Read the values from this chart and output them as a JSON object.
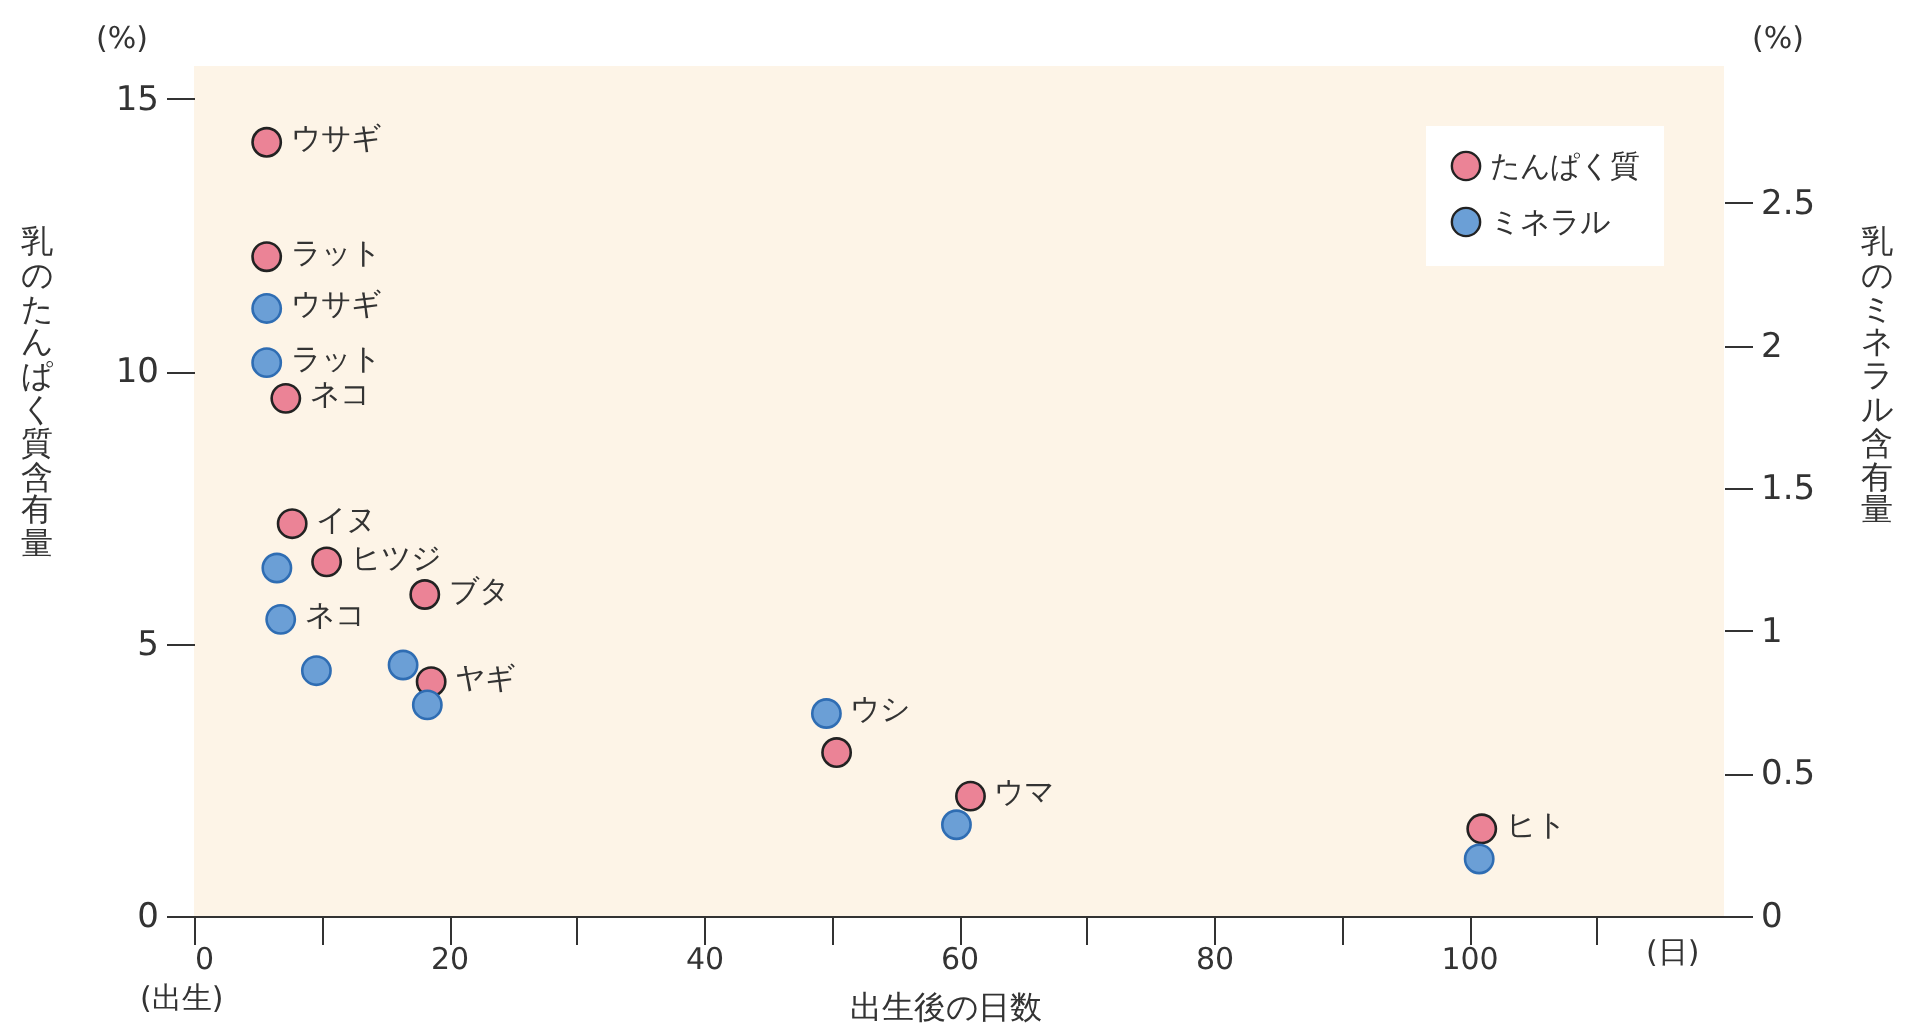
{
  "chart_data": {
    "type": "scatter",
    "xlabel": "出生後の日数",
    "ylabel": "乳のたんぱく質含有量",
    "y2label": "乳のミネラル含有量",
    "annotations": [
      "(%)",
      "(%)",
      "(日)",
      "(出生)"
    ],
    "xlim": [
      0,
      120
    ],
    "xticks": [
      0,
      {
        "value": 10,
        "label": null
      },
      20,
      {
        "value": 30,
        "label": null
      },
      40,
      {
        "value": 50,
        "label": null
      },
      60,
      {
        "value": 70,
        "label": null
      },
      80,
      {
        "value": 90,
        "label": null
      },
      100,
      {
        "value": 110,
        "label": null
      }
    ],
    "ylim": [
      0,
      15.6
    ],
    "yticks": [
      0,
      5,
      10,
      15
    ],
    "y2lim": [
      0,
      2.98
    ],
    "y2ticks": [
      0,
      0.5,
      1,
      1.5,
      2,
      2.5
    ],
    "legend": "top right",
    "marker": "circle",
    "grid": false,
    "series": [
      {
        "name": "たんぱく質",
        "color": "#eb8396",
        "x": [
          5.7,
          5.7,
          7.2,
          7.7,
          10.4,
          18.1,
          18.6,
          50.4,
          60.9,
          101
        ],
        "values": [
          14.2,
          12.1,
          9.5,
          7.2,
          6.5,
          5.9,
          4.3,
          3.0,
          2.2,
          1.6
        ],
        "value_labels": [
          "ウサギ",
          "ラット",
          "ネコ",
          "イヌ",
          "ヒツジ",
          "ブタ",
          "ヤギ",
          null,
          "ウマ",
          "ヒト"
        ]
      },
      {
        "name": "ミネラル",
        "color": "#6b9fd6",
        "axis": "y2",
        "x": [
          5.7,
          5.7,
          6.5,
          6.8,
          9.6,
          16.4,
          18.3,
          49.6,
          59.8,
          100.8
        ],
        "values": [
          2.13,
          1.94,
          1.22,
          1.04,
          0.86,
          0.88,
          0.74,
          0.71,
          0.32,
          0.2
        ],
        "value_labels": [
          "ウサギ",
          "ラット",
          null,
          "ネコ",
          null,
          null,
          null,
          "ウシ",
          null,
          null
        ]
      }
    ]
  }
}
